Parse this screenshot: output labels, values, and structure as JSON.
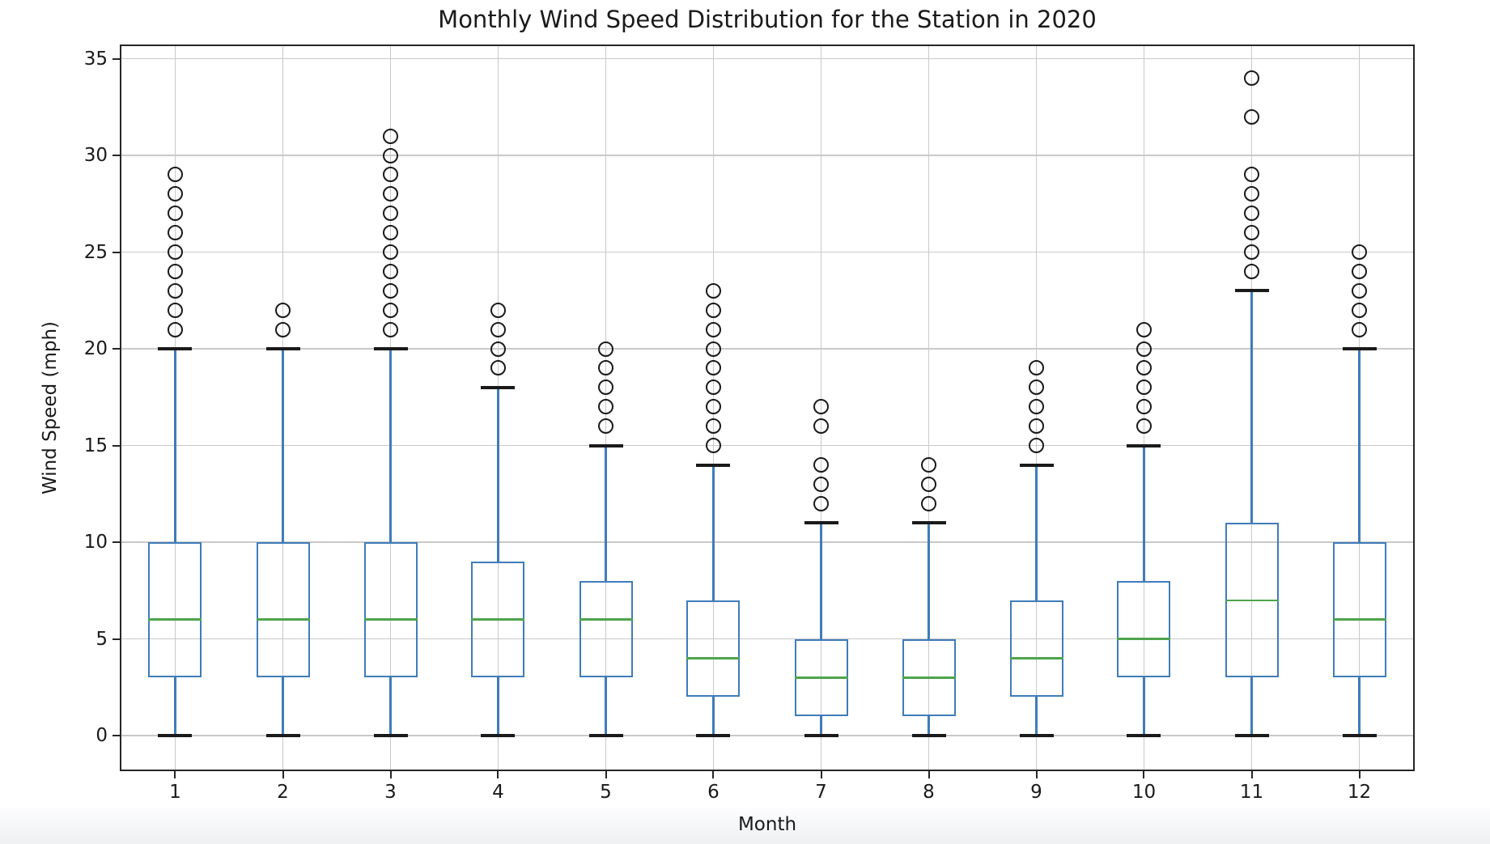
{
  "chart_data": {
    "type": "box",
    "title": "Monthly Wind Speed Distribution for the Station in 2020",
    "xlabel": "Month",
    "ylabel": "Wind Speed (mph)",
    "x_categories": [
      "1",
      "2",
      "3",
      "4",
      "5",
      "6",
      "7",
      "8",
      "9",
      "10",
      "11",
      "12"
    ],
    "yticks": [
      0,
      5,
      10,
      15,
      20,
      25,
      30,
      35
    ],
    "ylim": [
      -1.75,
      35.65
    ],
    "grid": true,
    "legend": "none",
    "colors": {
      "box": "#3f7cb9",
      "whisker": "#3f7cb9",
      "median": "#4da44d",
      "cap": "#1a1a1a",
      "flier_edge": "#1a1a1a",
      "gridline": "#c9c9c9",
      "spine": "#262626",
      "background": "#ffffff"
    },
    "boxes": [
      {
        "month": "1",
        "whisker_low": 0,
        "q1": 3,
        "median": 6,
        "q3": 10,
        "whisker_high": 20,
        "outliers": [
          21,
          22,
          23,
          24,
          25,
          26,
          27,
          28,
          29
        ]
      },
      {
        "month": "2",
        "whisker_low": 0,
        "q1": 3,
        "median": 6,
        "q3": 10,
        "whisker_high": 20,
        "outliers": [
          21,
          22
        ]
      },
      {
        "month": "3",
        "whisker_low": 0,
        "q1": 3,
        "median": 6,
        "q3": 10,
        "whisker_high": 20,
        "outliers": [
          21,
          22,
          23,
          24,
          25,
          26,
          27,
          28,
          29,
          30,
          31
        ]
      },
      {
        "month": "4",
        "whisker_low": 0,
        "q1": 3,
        "median": 6,
        "q3": 9,
        "whisker_high": 18,
        "outliers": [
          19,
          20,
          21,
          22
        ]
      },
      {
        "month": "5",
        "whisker_low": 0,
        "q1": 3,
        "median": 6,
        "q3": 8,
        "whisker_high": 15,
        "outliers": [
          16,
          17,
          18,
          19,
          20
        ]
      },
      {
        "month": "6",
        "whisker_low": 0,
        "q1": 2,
        "median": 4,
        "q3": 7,
        "whisker_high": 14,
        "outliers": [
          15,
          16,
          17,
          18,
          19,
          20,
          21,
          22,
          23
        ]
      },
      {
        "month": "7",
        "whisker_low": 0,
        "q1": 1,
        "median": 3,
        "q3": 5,
        "whisker_high": 11,
        "outliers": [
          12,
          13,
          14,
          16,
          17
        ]
      },
      {
        "month": "8",
        "whisker_low": 0,
        "q1": 1,
        "median": 3,
        "q3": 5,
        "whisker_high": 11,
        "outliers": [
          12,
          13,
          14
        ]
      },
      {
        "month": "9",
        "whisker_low": 0,
        "q1": 2,
        "median": 4,
        "q3": 7,
        "whisker_high": 14,
        "outliers": [
          15,
          16,
          17,
          18,
          19
        ]
      },
      {
        "month": "10",
        "whisker_low": 0,
        "q1": 3,
        "median": 5,
        "q3": 8,
        "whisker_high": 15,
        "outliers": [
          16,
          17,
          18,
          19,
          20,
          21
        ]
      },
      {
        "month": "11",
        "whisker_low": 0,
        "q1": 3,
        "median": 7,
        "q3": 11,
        "whisker_high": 23,
        "outliers": [
          24,
          25,
          26,
          27,
          28,
          29,
          32,
          34
        ]
      },
      {
        "month": "12",
        "whisker_low": 0,
        "q1": 3,
        "median": 6,
        "q3": 10,
        "whisker_high": 20,
        "outliers": [
          21,
          22,
          23,
          24,
          25
        ]
      }
    ]
  }
}
